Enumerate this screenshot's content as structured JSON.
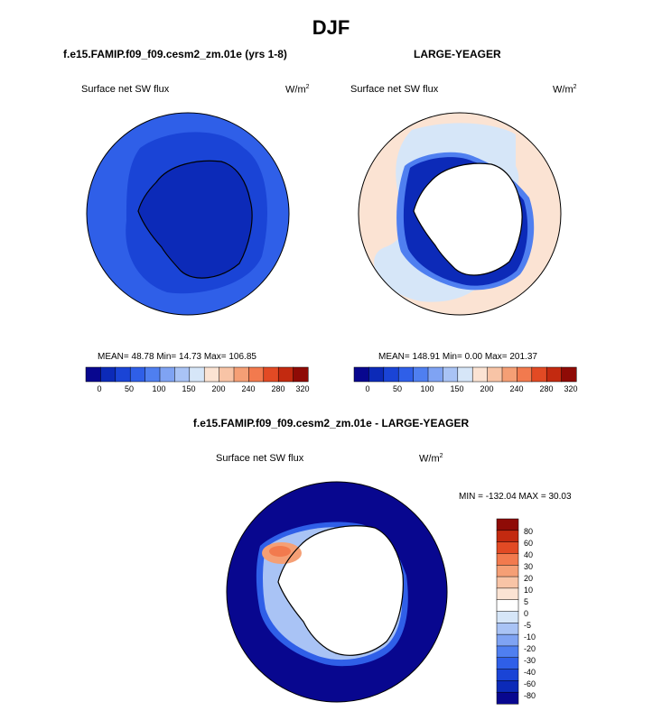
{
  "figure": {
    "season_title": "DJF"
  },
  "panels": [
    {
      "title": "f.e15.FAMIP.f09_f09.cesm2_zm.01e (yrs 1-8)",
      "variable": "Surface net SW flux",
      "units": "W/m",
      "units_sup": "2",
      "stats": "MEAN= 48.78  Min= 14.73  Max= 106.85",
      "colorbar_labels": [
        "0",
        "50",
        "100",
        "150",
        "200",
        "240",
        "280",
        "320"
      ]
    },
    {
      "title": "LARGE-YEAGER",
      "variable": "Surface net SW flux",
      "units": "W/m",
      "units_sup": "2",
      "stats": "MEAN= 148.91  Min=   0.00  Max= 201.37",
      "colorbar_labels": [
        "0",
        "50",
        "100",
        "150",
        "200",
        "240",
        "280",
        "320"
      ]
    },
    {
      "title": "f.e15.FAMIP.f09_f09.cesm2_zm.01e - LARGE-YEAGER",
      "variable": "Surface net SW flux",
      "units": "W/m",
      "units_sup": "2",
      "stats": "MIN = -132.04 MAX =  30.03",
      "colorbar_labels": [
        "80",
        "60",
        "40",
        "30",
        "20",
        "10",
        "5",
        "0",
        "-5",
        "-10",
        "-20",
        "-30",
        "-40",
        "-60",
        "-80"
      ]
    }
  ],
  "colors": {
    "sequential_palette": [
      "#08078f",
      "#0c2ab8",
      "#1a44d6",
      "#2f5fe8",
      "#4f7ff0",
      "#7fa3f3",
      "#a9c3f5",
      "#d6e6f8",
      "#fbe3d3",
      "#f8c4a6",
      "#f59f75",
      "#f27a4e",
      "#e24a24",
      "#c32a10",
      "#8f0b06"
    ],
    "diff_palette": [
      "#8f0b06",
      "#c32a10",
      "#e24a24",
      "#f27a4e",
      "#f59f75",
      "#f8c4a6",
      "#fbe3d3",
      "#ffffff",
      "#d6e6f8",
      "#a9c3f5",
      "#7fa3f3",
      "#4f7ff0",
      "#2f5fe8",
      "#1a44d6",
      "#0c2ab8",
      "#08078f"
    ]
  }
}
